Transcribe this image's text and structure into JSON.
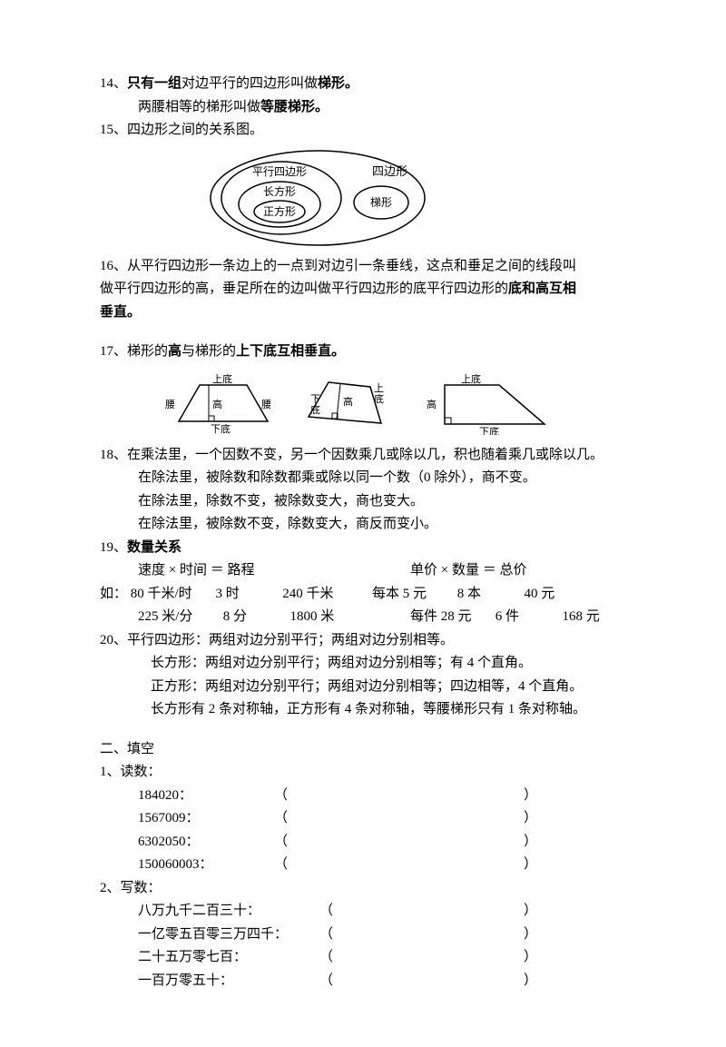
{
  "items": {
    "14": {
      "num": "14、",
      "p1a": "只有一组",
      "p1b": "对边平行的四边形叫做",
      "p1c": "梯形。",
      "p2a": "两腰相等的梯形叫做",
      "p2b": "等腰梯形。"
    },
    "15": {
      "num": "15、",
      "text": "四边形之间的关系图。"
    },
    "venn": {
      "outer": "四边形",
      "para": "平行四边形",
      "rect": "长方形",
      "square": "正方形",
      "trap": "梯形",
      "stroke": "#000000",
      "bg": "#ffffff",
      "fontsize": 12
    },
    "16": {
      "num": "16、",
      "p1": "从平行四边形一条边上的一点到对边引一条垂线，这点和垂足之间的线段叫",
      "p2": "做平行四边形的高，垂足所在的边叫做平行四边形的底平行四边形的",
      "p2b": "底和高互相",
      "p3": "垂直。"
    },
    "17": {
      "num": "17、",
      "p1a": "梯形的",
      "p1b": "高",
      "p1c": "与梯形的",
      "p1d": "上下底互相垂直。"
    },
    "trapezoids": {
      "labels": {
        "top": "上底",
        "bottom": "下底",
        "leg": "腰",
        "height": "高"
      },
      "stroke": "#000000",
      "fontsize": 11
    },
    "18": {
      "num": "18、",
      "l1": "在乘法里，一个因数不变，另一个因数乘几或除以几，积也随着乘几或除以几。",
      "l2": "在除法里，被除数和除数都乘或除以同一个数（0 除外），商不变。",
      "l3": "在除法里，除数不变，被除数变大，商也变大。",
      "l4": "在除法里，被除数不变，除数变大，商反而变小。"
    },
    "19": {
      "num": "19、",
      "title": "数量关系",
      "left_head": "速度 × 时间 ＝ 路程",
      "right_head": "单价 × 数量 ＝ 总价",
      "eg": "如：",
      "l_rows": [
        [
          "80 千米/时",
          "3 时",
          "240 千米"
        ],
        [
          "225 米/分",
          "8 分",
          "1800 米"
        ]
      ],
      "r_rows": [
        [
          "每本 5 元",
          "8 本",
          "40 元"
        ],
        [
          "每件 28 元",
          "6 件",
          "168 元"
        ]
      ]
    },
    "20": {
      "num": "20、",
      "l1": "平行四边形：两组对边分别平行；两组对边分别相等。",
      "l2": "长方形：两组对边分别平行；两组对边分别相等；有 4 个直角。",
      "l3": "正方形：两组对边分别平行；两组对边分别相等；四边相等，4 个直角。",
      "l4": "长方形有 2 条对称轴，正方形有 4 条对称轴，等腰梯形只有 1 条对称轴。"
    }
  },
  "section2": {
    "head": "二、填空",
    "q1": {
      "num": "1、",
      "title": "读数：",
      "rows": [
        "184020：",
        "1567009：",
        "6302050：",
        "150060003："
      ]
    },
    "q2": {
      "num": "2、",
      "title": "写数：",
      "rows": [
        "八万九千二百三十：",
        "一亿零五百零三万四千：",
        "二十五万零七百：",
        "一百万零五十："
      ]
    }
  },
  "paren": {
    "open": "（",
    "close": "）"
  }
}
